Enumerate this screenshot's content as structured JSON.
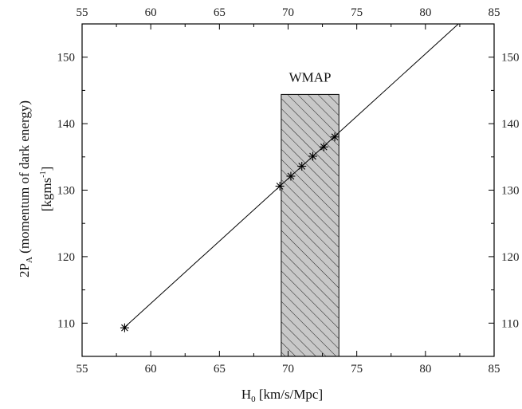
{
  "chart_data": {
    "type": "line",
    "xlim": [
      55,
      85
    ],
    "ylim": [
      105,
      155
    ],
    "x_ticks": [
      "55",
      "60",
      "65",
      "70",
      "75",
      "80",
      "85"
    ],
    "x_tick_values": [
      55,
      60,
      65,
      70,
      75,
      80,
      85
    ],
    "y_ticks": [
      "110",
      "120",
      "130",
      "140",
      "150"
    ],
    "y_tick_values": [
      110,
      120,
      130,
      140,
      150
    ],
    "xlabel": {
      "main": "H",
      "sub": "0",
      "rest": " [km/s/Mpc]"
    },
    "ylabel": {
      "line1_main": "2P",
      "line1_sub": "A",
      "line1_rest": " (momentum of dark energy)",
      "line2_pre": "[kgms",
      "line2_sup": "-1",
      "line2_post": "]"
    },
    "fit_line": {
      "x": [
        58.0,
        82.4
      ],
      "y": [
        109.2,
        155.0
      ]
    },
    "series": [
      {
        "marker": "asterisk",
        "x": [
          58.1,
          69.4,
          70.2,
          71.0,
          71.8,
          72.6,
          73.4
        ],
        "y": [
          109.3,
          130.6,
          132.1,
          133.6,
          135.1,
          136.5,
          138.0
        ]
      }
    ],
    "band": {
      "label": "WMAP",
      "x_range": [
        69.5,
        73.7
      ],
      "y_range": [
        105,
        144.4
      ],
      "color": "#c8c8c8",
      "hatch": true
    },
    "grid": false,
    "mirrored_ticks": true
  }
}
